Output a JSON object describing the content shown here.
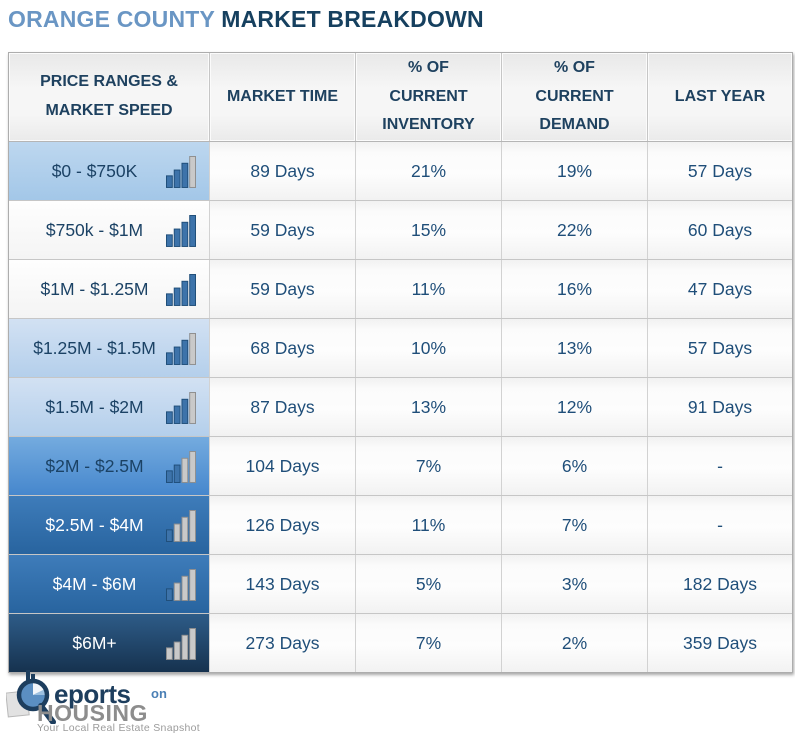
{
  "title": {
    "region": "ORANGE COUNTY",
    "subject": "MARKET BREAKDOWN"
  },
  "colors": {
    "title_accent": "#6a96c4",
    "title_dark": "#16405f",
    "cell_text_navy": "#1f4e79",
    "bar_blue": "#3d73aa",
    "bar_gray": "#c9c9c9",
    "row_light_blue": "#a3c7e8",
    "row_mid_blue": "#4687cd",
    "row_dark_blue": "#28649f",
    "row_navy": "#16324f"
  },
  "chart_data": {
    "type": "table",
    "title": "ORANGE COUNTY MARKET BREAKDOWN",
    "columns": [
      "PRICE RANGES & MARKET SPEED",
      "MARKET TIME",
      "% OF CURRENT INVENTORY",
      "% OF CURRENT DEMAND",
      "LAST YEAR"
    ],
    "rows": [
      [
        "$0 - $750K",
        "89 Days",
        "21%",
        "19%",
        "57 Days"
      ],
      [
        "$750k - $1M",
        "59 Days",
        "15%",
        "22%",
        "60 Days"
      ],
      [
        "$1M - $1.25M",
        "59 Days",
        "11%",
        "16%",
        "47 Days"
      ],
      [
        "$1.25M - $1.5M",
        "68 Days",
        "10%",
        "13%",
        "57 Days"
      ],
      [
        "$1.5M - $2M",
        "87 Days",
        "13%",
        "12%",
        "91 Days"
      ],
      [
        "$2M - $2.5M",
        "104 Days",
        "7%",
        "6%",
        "-"
      ],
      [
        "$2.5M - $4M",
        "126 Days",
        "11%",
        "7%",
        "-"
      ],
      [
        "$4M - $6M",
        "143 Days",
        "5%",
        "3%",
        "182 Days"
      ],
      [
        "$6M+",
        "273 Days",
        "7%",
        "2%",
        "359 Days"
      ]
    ]
  },
  "table": {
    "row_styles": [
      {
        "shade": "blue1",
        "blue_bars": 3
      },
      {
        "shade": "white",
        "blue_bars": 4
      },
      {
        "shade": "white",
        "blue_bars": 4
      },
      {
        "shade": "blue2",
        "blue_bars": 3
      },
      {
        "shade": "blue2",
        "blue_bars": 3
      },
      {
        "shade": "blue3",
        "blue_bars": 2
      },
      {
        "shade": "blue4",
        "blue_bars": 1
      },
      {
        "shade": "blue4",
        "blue_bars": 1
      },
      {
        "shade": "blue5",
        "blue_bars": 0
      }
    ]
  },
  "logo": {
    "eports": "eports",
    "on": "on",
    "housing": "HOUSING",
    "tagline": "Your Local Real Estate Snapshot"
  }
}
